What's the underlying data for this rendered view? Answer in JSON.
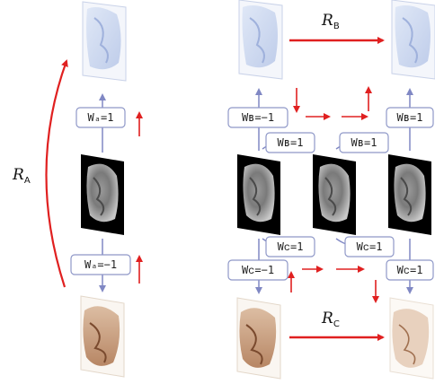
{
  "colors": {
    "red_arrow": "#e02020",
    "blue_arrow": "#8088c4",
    "box_border": "#8f98c8",
    "mri_bg": "#000000",
    "blue_stain": "#c8d4ec",
    "brown_stain": "#c69a78"
  },
  "labels": {
    "r_a_main": "R",
    "r_a_sub": "A",
    "r_b_main": "R",
    "r_b_sub": "B",
    "r_c_main": "R",
    "r_c_sub": "C",
    "wa_top": "Wₐ=1",
    "wa_bottom": "Wₐ=−1",
    "wb_left": "Wʙ=−1",
    "wb_right": "Wʙ=1",
    "wb_mid1": "Wʙ=1",
    "wb_mid2": "Wʙ=1",
    "wc_mid1": "Wᴄ=1",
    "wc_mid2": "Wᴄ=1",
    "wc_left": "Wᴄ=−1",
    "wc_right": "Wᴄ=1"
  },
  "images": {
    "left_top": "blue-stained-histology-slice",
    "left_mid": "mri-slice",
    "left_bottom": "brown-stained-histology-slice",
    "right_top_left": "blue-stained-histology-slice",
    "right_top_right": "blue-stained-histology-slice-registered",
    "right_mri_1": "mri-slice",
    "right_mri_2": "mri-slice-intermediate",
    "right_mri_3": "mri-slice-final",
    "right_bottom_left": "brown-stained-histology-slice",
    "right_bottom_right": "brown-stained-histology-slice-registered"
  }
}
